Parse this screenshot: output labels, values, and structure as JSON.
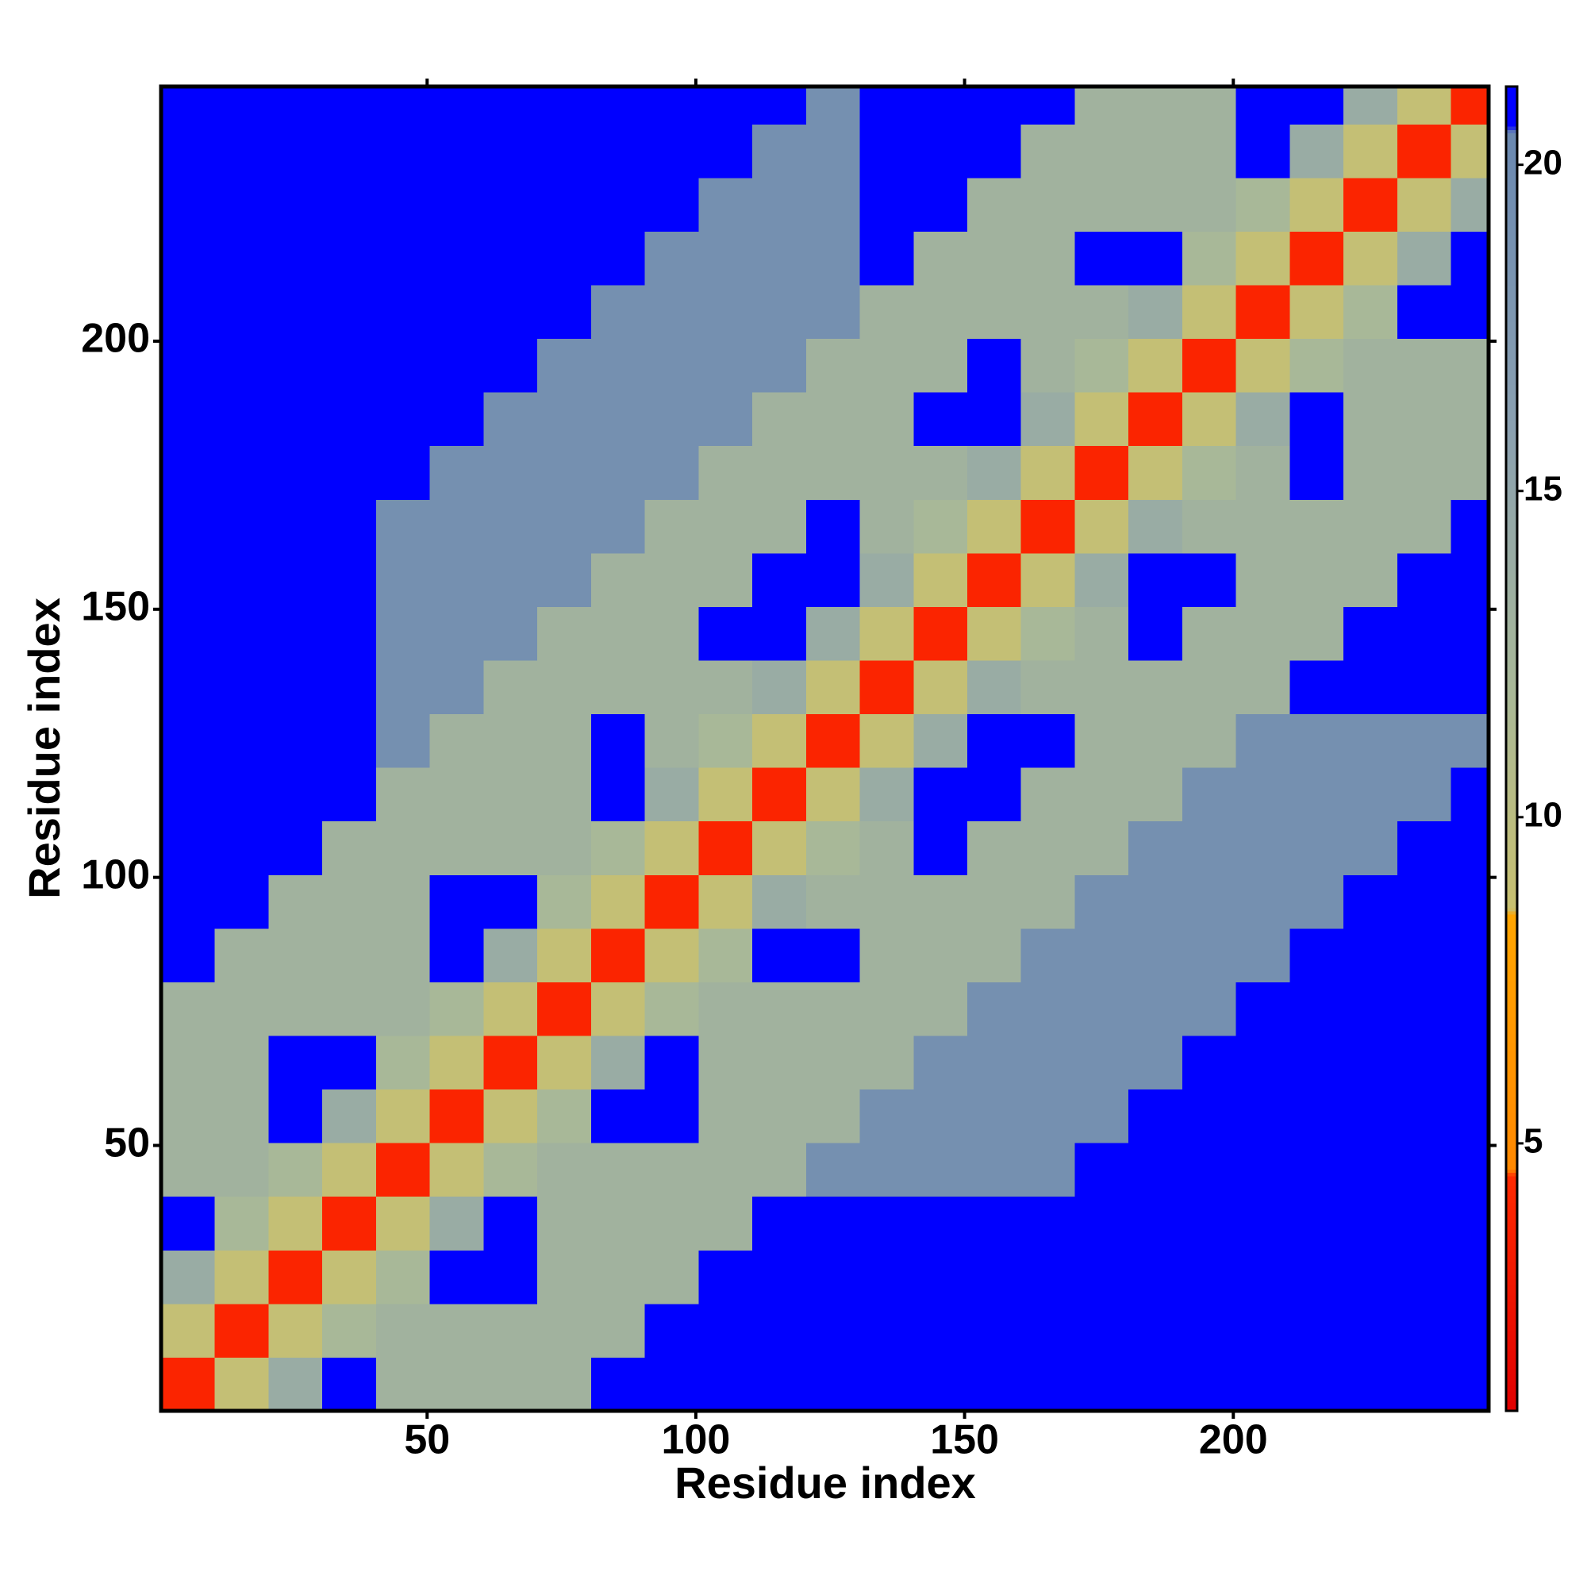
{
  "chart_data": {
    "type": "heatmap",
    "xlabel": "Residue index",
    "ylabel": "Residue index",
    "x_bins": [
      0.5,
      10.5,
      20.5,
      30.5,
      40.5,
      50.5,
      60.5,
      70.5,
      80.5,
      90.5,
      100.5,
      110.5,
      120.5,
      130.5,
      140.5,
      150.5,
      160.5,
      170.5,
      180.5,
      190.5,
      200.5,
      210.5,
      220.5,
      230.5,
      240.5,
      247.5
    ],
    "y_bins": [
      0.5,
      10.5,
      20.5,
      30.5,
      40.5,
      50.5,
      60.5,
      70.5,
      80.5,
      90.5,
      100.5,
      110.5,
      120.5,
      130.5,
      140.5,
      150.5,
      160.5,
      170.5,
      180.5,
      190.5,
      200.5,
      210.5,
      220.5,
      230.5,
      240.5,
      247.5
    ],
    "xlim": [
      0.5,
      247.5
    ],
    "ylim": [
      0.5,
      247.5
    ],
    "xticks": [
      50,
      100,
      150,
      200
    ],
    "yticks": [
      50,
      100,
      150,
      200
    ],
    "z": [
      [
        4,
        9,
        14,
        21,
        13,
        13,
        13,
        13,
        21,
        21,
        21,
        21,
        21,
        21,
        21,
        21,
        21,
        21,
        21,
        21,
        21,
        21,
        21,
        21,
        21
      ],
      [
        9,
        4,
        9,
        12,
        13,
        13,
        13,
        13,
        13,
        21,
        21,
        21,
        21,
        21,
        21,
        21,
        21,
        21,
        21,
        21,
        21,
        21,
        21,
        21,
        21
      ],
      [
        14,
        9,
        4,
        9,
        12,
        21,
        21,
        13,
        13,
        13,
        21,
        21,
        21,
        21,
        21,
        21,
        21,
        21,
        21,
        21,
        21,
        21,
        21,
        21,
        21
      ],
      [
        21,
        12,
        9,
        4,
        9,
        14,
        21,
        13,
        13,
        13,
        13,
        21,
        21,
        21,
        21,
        21,
        21,
        21,
        21,
        21,
        21,
        21,
        21,
        21,
        21
      ],
      [
        13,
        13,
        12,
        9,
        4,
        9,
        12,
        13,
        13,
        13,
        13,
        13,
        19,
        19,
        19,
        19,
        19,
        21,
        21,
        21,
        21,
        21,
        21,
        21,
        21
      ],
      [
        13,
        13,
        21,
        14,
        9,
        4,
        9,
        12,
        21,
        21,
        13,
        13,
        13,
        19,
        19,
        19,
        19,
        19,
        21,
        21,
        21,
        21,
        21,
        21,
        21
      ],
      [
        13,
        13,
        21,
        21,
        12,
        9,
        4,
        9,
        14,
        21,
        13,
        13,
        13,
        13,
        19,
        19,
        19,
        19,
        19,
        21,
        21,
        21,
        21,
        21,
        21
      ],
      [
        13,
        13,
        13,
        13,
        13,
        12,
        9,
        4,
        9,
        12,
        13,
        13,
        13,
        13,
        13,
        19,
        19,
        19,
        19,
        19,
        21,
        21,
        21,
        21,
        21
      ],
      [
        21,
        13,
        13,
        13,
        13,
        21,
        14,
        9,
        4,
        9,
        12,
        21,
        21,
        13,
        13,
        13,
        19,
        19,
        19,
        19,
        19,
        21,
        21,
        21,
        21
      ],
      [
        21,
        21,
        13,
        13,
        13,
        21,
        21,
        12,
        9,
        4,
        9,
        14,
        13,
        13,
        13,
        13,
        13,
        19,
        19,
        19,
        19,
        19,
        21,
        21,
        21
      ],
      [
        21,
        21,
        21,
        13,
        13,
        13,
        13,
        13,
        12,
        9,
        4,
        9,
        12,
        13,
        21,
        13,
        13,
        13,
        19,
        19,
        19,
        19,
        19,
        21,
        21
      ],
      [
        21,
        21,
        21,
        21,
        13,
        13,
        13,
        13,
        21,
        14,
        9,
        4,
        9,
        14,
        21,
        21,
        13,
        13,
        13,
        19,
        19,
        19,
        19,
        19,
        21
      ],
      [
        21,
        21,
        21,
        21,
        19,
        13,
        13,
        13,
        21,
        13,
        12,
        9,
        4,
        9,
        14,
        21,
        21,
        13,
        13,
        13,
        19,
        19,
        19,
        19,
        19
      ],
      [
        21,
        21,
        21,
        21,
        19,
        19,
        13,
        13,
        13,
        13,
        13,
        14,
        9,
        4,
        9,
        14,
        13,
        13,
        13,
        13,
        13,
        21,
        21,
        21,
        21
      ],
      [
        21,
        21,
        21,
        21,
        19,
        19,
        19,
        13,
        13,
        13,
        21,
        21,
        14,
        9,
        4,
        9,
        12,
        13,
        21,
        13,
        13,
        13,
        21,
        21,
        21
      ],
      [
        21,
        21,
        21,
        21,
        19,
        19,
        19,
        19,
        13,
        13,
        13,
        21,
        21,
        14,
        9,
        4,
        9,
        14,
        21,
        21,
        13,
        13,
        13,
        21,
        21
      ],
      [
        21,
        21,
        21,
        21,
        19,
        19,
        19,
        19,
        19,
        13,
        13,
        13,
        21,
        13,
        12,
        9,
        4,
        9,
        14,
        13,
        13,
        13,
        13,
        13,
        21
      ],
      [
        21,
        21,
        21,
        21,
        21,
        19,
        19,
        19,
        19,
        19,
        13,
        13,
        13,
        13,
        13,
        14,
        9,
        4,
        9,
        12,
        13,
        21,
        13,
        13,
        13
      ],
      [
        21,
        21,
        21,
        21,
        21,
        21,
        19,
        19,
        19,
        19,
        19,
        13,
        13,
        13,
        21,
        21,
        14,
        9,
        4,
        9,
        14,
        21,
        13,
        13,
        13
      ],
      [
        21,
        21,
        21,
        21,
        21,
        21,
        21,
        19,
        19,
        19,
        19,
        19,
        13,
        13,
        13,
        21,
        13,
        12,
        9,
        4,
        9,
        12,
        13,
        13,
        13
      ],
      [
        21,
        21,
        21,
        21,
        21,
        21,
        21,
        21,
        19,
        19,
        19,
        19,
        19,
        13,
        13,
        13,
        13,
        13,
        14,
        9,
        4,
        9,
        12,
        21,
        21
      ],
      [
        21,
        21,
        21,
        21,
        21,
        21,
        21,
        21,
        21,
        19,
        19,
        19,
        19,
        21,
        13,
        13,
        13,
        21,
        21,
        12,
        9,
        4,
        9,
        14,
        21
      ],
      [
        21,
        21,
        21,
        21,
        21,
        21,
        21,
        21,
        21,
        21,
        19,
        19,
        19,
        21,
        21,
        13,
        13,
        13,
        13,
        13,
        12,
        9,
        4,
        9,
        14
      ],
      [
        21,
        21,
        21,
        21,
        21,
        21,
        21,
        21,
        21,
        21,
        21,
        19,
        19,
        21,
        21,
        21,
        13,
        13,
        13,
        13,
        21,
        14,
        9,
        4,
        9
      ],
      [
        21,
        21,
        21,
        21,
        21,
        21,
        21,
        21,
        21,
        21,
        21,
        21,
        19,
        21,
        21,
        21,
        21,
        13,
        13,
        13,
        21,
        21,
        14,
        9,
        4
      ]
    ],
    "colorbar": {
      "lim": [
        0.9,
        21.2
      ],
      "ticks": [
        5,
        10,
        15,
        20
      ],
      "stops": [
        {
          "value": 0.9,
          "color": "#e00000"
        },
        {
          "value": 4.5,
          "color": "#ff2a00"
        },
        {
          "value": 4.6,
          "color": "#ff8800"
        },
        {
          "value": 8.5,
          "color": "#ffa500"
        },
        {
          "value": 8.6,
          "color": "#c8c070"
        },
        {
          "value": 12,
          "color": "#a8b898"
        },
        {
          "value": 16,
          "color": "#8aa0b0"
        },
        {
          "value": 20.5,
          "color": "#6a88b0"
        },
        {
          "value": 20.6,
          "color": "#0000ff"
        },
        {
          "value": 21.2,
          "color": "#0000ff"
        }
      ]
    }
  }
}
